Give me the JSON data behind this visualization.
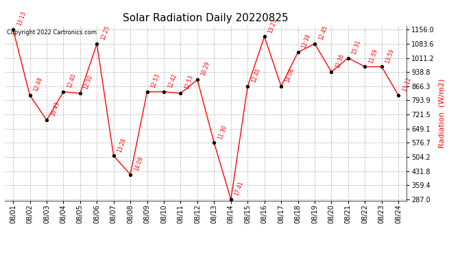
{
  "title": "Solar Radiation Daily 20220825",
  "ylabel": "Radiation  (W/m2)",
  "copyright": "Copyright 2022 Cartronics.com",
  "background_color": "#ffffff",
  "line_color": "red",
  "marker_color": "black",
  "text_color": "red",
  "dates": [
    "08/01",
    "08/02",
    "08/03",
    "08/04",
    "08/05",
    "08/06",
    "08/07",
    "08/08",
    "08/09",
    "08/10",
    "08/11",
    "08/12",
    "08/13",
    "08/14",
    "08/15",
    "08/16",
    "08/17",
    "08/18",
    "08/19",
    "08/20",
    "08/21",
    "08/22",
    "08/23",
    "08/24"
  ],
  "values": [
    1156.0,
    820.0,
    693.0,
    838.0,
    830.0,
    1083.6,
    510.0,
    415.0,
    838.0,
    838.0,
    830.0,
    900.0,
    576.7,
    287.0,
    866.3,
    1120.0,
    866.3,
    1040.0,
    1083.6,
    940.0,
    1011.2,
    966.0,
    966.0,
    820.0
  ],
  "time_labels": [
    "13:13",
    "12:48",
    "16:43",
    "12:40",
    "12:30",
    "12:25",
    "13:28",
    "14:09",
    "12:53",
    "12:42",
    "12:53",
    "10:29",
    "11:30",
    "17:41",
    "12:45",
    "13:23",
    "14:08",
    "12:38",
    "12:45",
    "12:36",
    "15:31",
    "11:59",
    "13:59",
    "13:12"
  ],
  "ylim_min": 287.0,
  "ylim_max": 1156.0,
  "ytick_values": [
    287.0,
    359.4,
    431.8,
    504.2,
    576.7,
    649.1,
    721.5,
    793.9,
    866.3,
    938.8,
    1011.2,
    1083.6,
    1156.0
  ]
}
